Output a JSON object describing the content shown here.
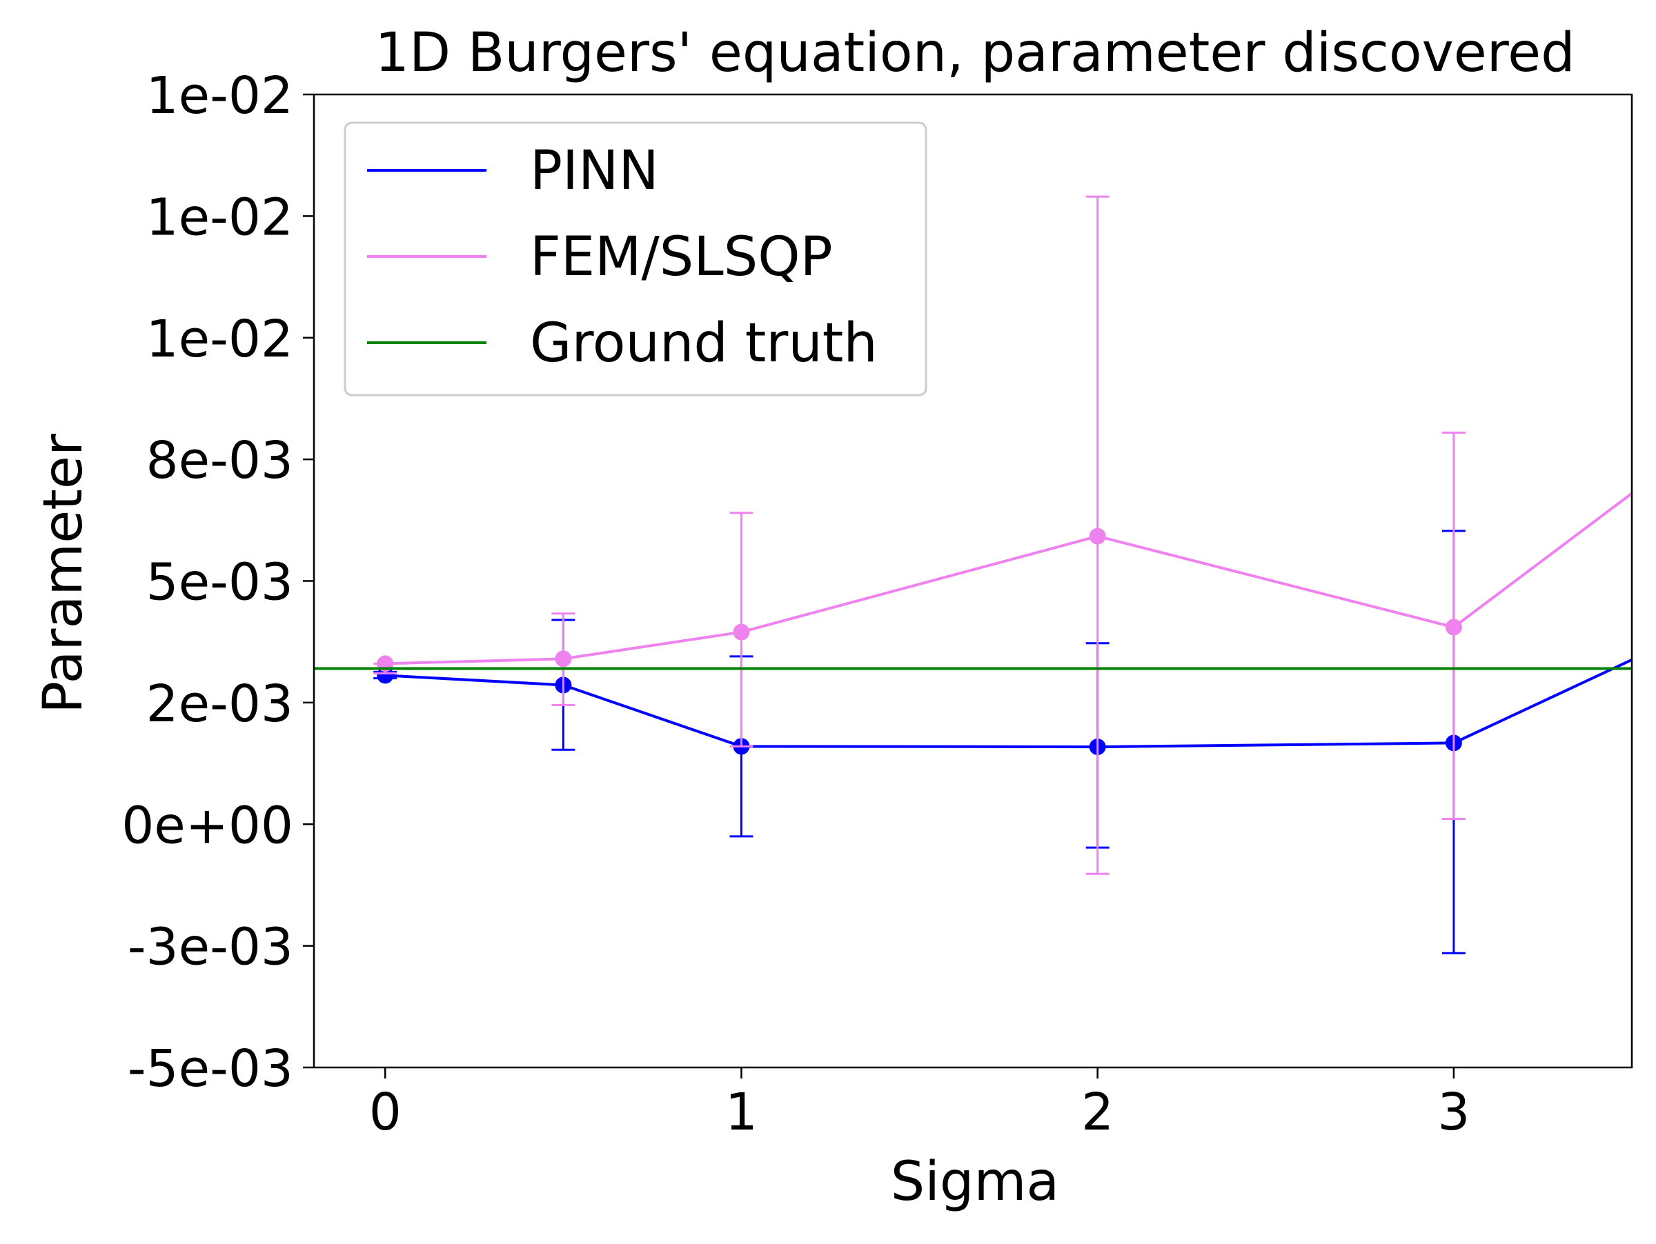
{
  "chart_data": {
    "type": "line",
    "title": "1D Burgers' equation, parameter discovered",
    "xlabel": "Sigma",
    "ylabel": "Parameter",
    "xlim": [
      -0.2,
      3.5
    ],
    "ylim": [
      -0.005,
      0.015
    ],
    "x_ticks": [
      {
        "value": 0,
        "label": "0"
      },
      {
        "value": 1,
        "label": "1"
      },
      {
        "value": 2,
        "label": "2"
      },
      {
        "value": 3,
        "label": "3"
      }
    ],
    "y_ticks": [
      {
        "value": -0.005,
        "label": "-5e-03"
      },
      {
        "value": -0.0025,
        "label": "-3e-03"
      },
      {
        "value": 0.0,
        "label": "0e+00"
      },
      {
        "value": 0.0025,
        "label": "2e-03"
      },
      {
        "value": 0.005,
        "label": "5e-03"
      },
      {
        "value": 0.0075,
        "label": "8e-03"
      },
      {
        "value": 0.01,
        "label": "1e-02"
      },
      {
        "value": 0.0125,
        "label": "1e-02"
      },
      {
        "value": 0.015,
        "label": "1e-02"
      }
    ],
    "grid": false,
    "legend_position": "top-left",
    "series": [
      {
        "name": "PINN",
        "color": "#0000ff",
        "x": [
          0,
          0.5,
          1,
          2,
          3,
          3.5
        ],
        "y": [
          0.00306,
          0.00286,
          0.0016,
          0.00159,
          0.00167,
          0.00338
        ],
        "yerr_low": [
          0.00313,
          0.00153,
          -0.00025,
          -0.00048,
          -0.00265,
          null
        ],
        "yerr_high": [
          0.003,
          0.0042,
          0.00345,
          0.00372,
          0.00603,
          null
        ],
        "markers": [
          true,
          true,
          true,
          true,
          true,
          false
        ]
      },
      {
        "name": "FEM/SLSQP",
        "color": "#ee82ee",
        "x": [
          0,
          0.5,
          1,
          2,
          3,
          3.5
        ],
        "y": [
          0.0033,
          0.0034,
          0.00395,
          0.00592,
          0.00405,
          0.0068
        ],
        "yerr_low": [
          0.0031,
          0.00245,
          0.0016,
          -0.00102,
          0.00011,
          null
        ],
        "yerr_high": [
          0.0033,
          0.00433,
          0.0064,
          0.0129,
          0.00805,
          null
        ],
        "markers": [
          true,
          true,
          true,
          true,
          true,
          false
        ]
      },
      {
        "name": "Ground truth",
        "color": "#008000",
        "x": [
          -0.2,
          3.5
        ],
        "y": [
          0.0032,
          0.0032
        ]
      }
    ]
  }
}
